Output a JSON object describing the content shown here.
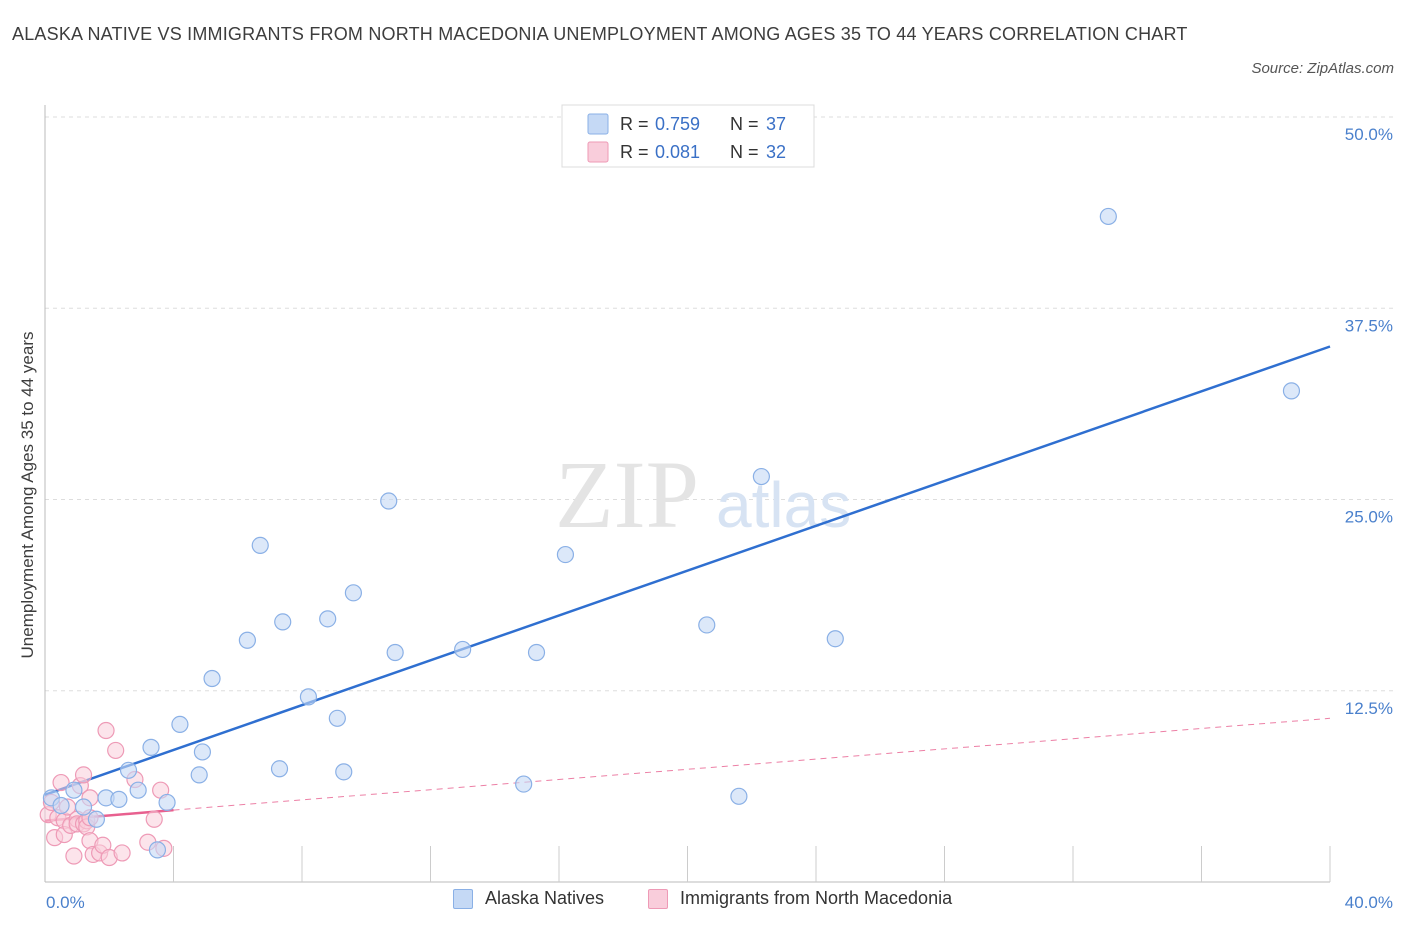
{
  "title": "ALASKA NATIVE VS IMMIGRANTS FROM NORTH MACEDONIA UNEMPLOYMENT AMONG AGES 35 TO 44 YEARS CORRELATION CHART",
  "source": "Source: ZipAtlas.com",
  "watermark": {
    "zip": "ZIP",
    "atlas": "atlas"
  },
  "colors": {
    "blue": "#2f6fd0",
    "blue_fill": "#c5d9f5",
    "blue_stroke": "#8ab0e6",
    "pink": "#e8608f",
    "pink_fill": "#f9cddb",
    "pink_stroke": "#ee9ab6",
    "grid": "#dddddd",
    "tick_text": "#4a80cc"
  },
  "legend": {
    "rows": [
      {
        "r_label": "R = ",
        "r_value": "0.759",
        "n_label": "N = ",
        "n_value": "37"
      },
      {
        "r_label": "R = ",
        "r_value": "0.081",
        "n_label": "N = ",
        "n_value": "32"
      }
    ]
  },
  "chart_data": {
    "type": "scatter",
    "title": "ALASKA NATIVE VS IMMIGRANTS FROM NORTH MACEDONIA UNEMPLOYMENT AMONG AGES 35 TO 44 YEARS CORRELATION CHART",
    "xlabel": "",
    "ylabel": "Unemployment Among Ages 35 to 44 years",
    "xlim": [
      0,
      40
    ],
    "ylim": [
      0,
      50
    ],
    "x_tick_labels": [
      {
        "value": 0,
        "label": "0.0%"
      },
      {
        "value": 40,
        "label": "40.0%"
      }
    ],
    "y_tick_labels": [
      {
        "value": 12.5,
        "label": "12.5%"
      },
      {
        "value": 25,
        "label": "25.0%"
      },
      {
        "value": 37.5,
        "label": "37.5%"
      },
      {
        "value": 50,
        "label": "50.0%"
      }
    ],
    "x_minor_ticks": [
      4,
      8,
      12,
      16,
      20,
      24,
      28,
      32,
      36,
      40
    ],
    "series": [
      {
        "name": "Alaska Natives",
        "color_key": "blue",
        "trend": {
          "x": [
            0,
            40
          ],
          "y": [
            5.7,
            35.0
          ],
          "style": "solid"
        },
        "points": [
          {
            "x": 0.2,
            "y": 5.5
          },
          {
            "x": 0.5,
            "y": 5.0
          },
          {
            "x": 0.9,
            "y": 6.0
          },
          {
            "x": 1.2,
            "y": 4.9
          },
          {
            "x": 1.6,
            "y": 4.1
          },
          {
            "x": 1.9,
            "y": 5.5
          },
          {
            "x": 2.3,
            "y": 5.4
          },
          {
            "x": 2.6,
            "y": 7.3
          },
          {
            "x": 2.9,
            "y": 6.0
          },
          {
            "x": 3.3,
            "y": 8.8
          },
          {
            "x": 3.5,
            "y": 2.1
          },
          {
            "x": 3.8,
            "y": 5.2
          },
          {
            "x": 4.2,
            "y": 10.3
          },
          {
            "x": 4.8,
            "y": 7.0
          },
          {
            "x": 4.9,
            "y": 8.5
          },
          {
            "x": 5.2,
            "y": 13.3
          },
          {
            "x": 6.3,
            "y": 15.8
          },
          {
            "x": 6.7,
            "y": 22.0
          },
          {
            "x": 7.3,
            "y": 7.4
          },
          {
            "x": 7.4,
            "y": 17.0
          },
          {
            "x": 8.2,
            "y": 12.1
          },
          {
            "x": 8.8,
            "y": 17.2
          },
          {
            "x": 9.1,
            "y": 10.7
          },
          {
            "x": 9.3,
            "y": 7.2
          },
          {
            "x": 9.6,
            "y": 18.9
          },
          {
            "x": 10.7,
            "y": 24.9
          },
          {
            "x": 10.9,
            "y": 15.0
          },
          {
            "x": 13.0,
            "y": 15.2
          },
          {
            "x": 14.9,
            "y": 6.4
          },
          {
            "x": 15.3,
            "y": 15.0
          },
          {
            "x": 16.2,
            "y": 21.4
          },
          {
            "x": 20.6,
            "y": 16.8
          },
          {
            "x": 21.6,
            "y": 5.6
          },
          {
            "x": 22.3,
            "y": 26.5
          },
          {
            "x": 24.6,
            "y": 15.9
          },
          {
            "x": 33.1,
            "y": 43.5
          },
          {
            "x": 38.8,
            "y": 32.1
          }
        ]
      },
      {
        "name": "Immigrants from North Macedonia",
        "color_key": "pink",
        "trend_fit": {
          "x": [
            0,
            4
          ],
          "y": [
            4.0,
            4.7
          ],
          "style": "solid"
        },
        "trend": {
          "x": [
            4,
            40
          ],
          "y": [
            4.7,
            10.7
          ],
          "style": "dashed"
        },
        "points": [
          {
            "x": 0.1,
            "y": 4.4
          },
          {
            "x": 0.2,
            "y": 5.2
          },
          {
            "x": 0.3,
            "y": 2.9
          },
          {
            "x": 0.4,
            "y": 4.2
          },
          {
            "x": 0.5,
            "y": 6.5
          },
          {
            "x": 0.6,
            "y": 4.0
          },
          {
            "x": 0.6,
            "y": 3.1
          },
          {
            "x": 0.7,
            "y": 4.9
          },
          {
            "x": 0.8,
            "y": 3.7
          },
          {
            "x": 0.9,
            "y": 1.7
          },
          {
            "x": 1.0,
            "y": 4.1
          },
          {
            "x": 1.0,
            "y": 3.8
          },
          {
            "x": 1.1,
            "y": 6.3
          },
          {
            "x": 1.2,
            "y": 3.8
          },
          {
            "x": 1.2,
            "y": 7.0
          },
          {
            "x": 1.3,
            "y": 4.0
          },
          {
            "x": 1.3,
            "y": 3.6
          },
          {
            "x": 1.4,
            "y": 5.5
          },
          {
            "x": 1.4,
            "y": 4.2
          },
          {
            "x": 1.4,
            "y": 2.7
          },
          {
            "x": 1.5,
            "y": 1.8
          },
          {
            "x": 1.7,
            "y": 1.9
          },
          {
            "x": 1.8,
            "y": 2.4
          },
          {
            "x": 1.9,
            "y": 9.9
          },
          {
            "x": 2.0,
            "y": 1.6
          },
          {
            "x": 2.2,
            "y": 8.6
          },
          {
            "x": 2.4,
            "y": 1.9
          },
          {
            "x": 2.8,
            "y": 6.7
          },
          {
            "x": 3.2,
            "y": 2.6
          },
          {
            "x": 3.4,
            "y": 4.1
          },
          {
            "x": 3.6,
            "y": 6.0
          },
          {
            "x": 3.7,
            "y": 2.2
          }
        ]
      }
    ]
  },
  "bottom_legend": [
    {
      "label": "Alaska Natives",
      "color_key": "blue"
    },
    {
      "label": "Immigrants from North Macedonia",
      "color_key": "pink"
    }
  ]
}
